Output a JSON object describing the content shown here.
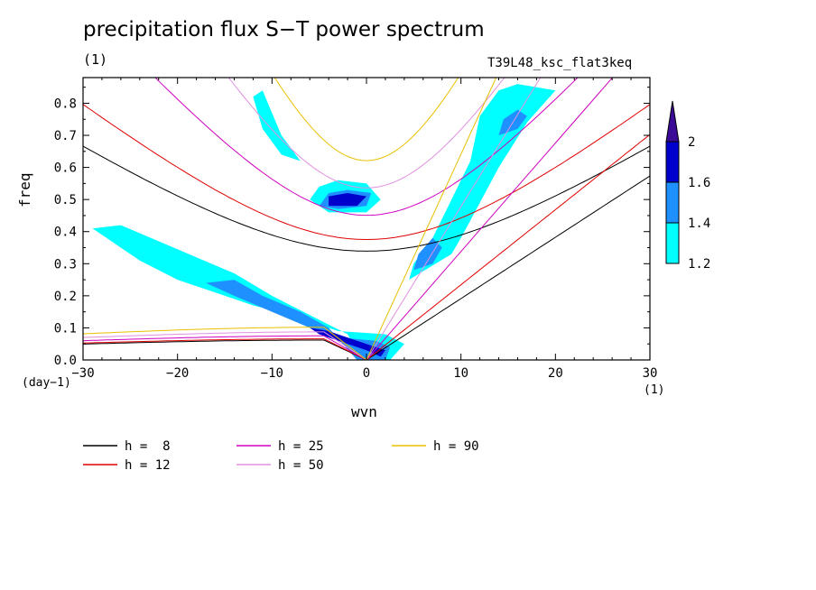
{
  "chart_data": {
    "type": "contour",
    "title": "precipitation flux S−T power spectrum",
    "units": "(1)",
    "run_label": "T39L48_ksc_flat3keq",
    "xlabel": "wvn",
    "xlabel_unit": "(1)",
    "ylabel": "freq",
    "ylabel_unit": "(day−1)",
    "xlim": [
      -30,
      30
    ],
    "ylim": [
      0,
      0.88
    ],
    "x_ticks": [
      -30,
      -20,
      -10,
      0,
      10,
      20,
      30
    ],
    "x_tick_labels": [
      "−30",
      "−20",
      "−10",
      "0",
      "10",
      "20",
      "30"
    ],
    "y_ticks": [
      0,
      0.1,
      0.2,
      0.3,
      0.4,
      0.5,
      0.6,
      0.7,
      0.8
    ],
    "y_tick_labels": [
      "0.0",
      "0.1",
      "0.2",
      "0.3",
      "0.4",
      "0.5",
      "0.6",
      "0.7",
      "0.8"
    ],
    "colorbar": {
      "levels": [
        "1.2",
        "1.4",
        "1.6",
        "2"
      ],
      "colors": [
        "#00ffff",
        "#1e90ff",
        "#0000cd",
        "#3b0a96"
      ]
    },
    "series": [
      {
        "name": "h =  8",
        "h": 8,
        "color": "#000000"
      },
      {
        "name": "h = 12",
        "h": 12,
        "color": "#e00000"
      },
      {
        "name": "h = 25",
        "h": 25,
        "color": "#d000c0"
      },
      {
        "name": "h = 50",
        "h": 50,
        "color": "#e090e0"
      },
      {
        "name": "h = 90",
        "h": 90,
        "color": "#e8c000"
      }
    ],
    "contour_regions": [
      {
        "level": 1.2,
        "points": [
          [
            -0.5,
            0.0
          ],
          [
            2.5,
            0.0
          ],
          [
            4,
            0.05
          ],
          [
            2,
            0.08
          ],
          [
            -3,
            0.09
          ],
          [
            -8,
            0.14
          ],
          [
            -12,
            0.17
          ],
          [
            -16,
            0.21
          ],
          [
            -20,
            0.25
          ],
          [
            -24,
            0.31
          ],
          [
            -27,
            0.37
          ],
          [
            -29,
            0.41
          ],
          [
            -26,
            0.42
          ],
          [
            -22,
            0.37
          ],
          [
            -18,
            0.32
          ],
          [
            -14,
            0.27
          ],
          [
            -10,
            0.2
          ],
          [
            -6,
            0.14
          ],
          [
            -2,
            0.08
          ]
        ]
      },
      {
        "level": 1.2,
        "points": [
          [
            4.5,
            0.25
          ],
          [
            9,
            0.33
          ],
          [
            10,
            0.38
          ],
          [
            12,
            0.49
          ],
          [
            14,
            0.6
          ],
          [
            17,
            0.74
          ],
          [
            20,
            0.84
          ],
          [
            16,
            0.86
          ],
          [
            14,
            0.84
          ],
          [
            12,
            0.76
          ],
          [
            11,
            0.62
          ],
          [
            9,
            0.5
          ],
          [
            7,
            0.38
          ],
          [
            5,
            0.3
          ]
        ]
      },
      {
        "level": 1.2,
        "points": [
          [
            -11,
            0.84
          ],
          [
            -10,
            0.77
          ],
          [
            -9,
            0.7
          ],
          [
            -8,
            0.66
          ],
          [
            -7,
            0.62
          ],
          [
            -9,
            0.64
          ],
          [
            -11,
            0.72
          ],
          [
            -12,
            0.82
          ]
        ]
      },
      {
        "level": 1.2,
        "points": [
          [
            -6,
            0.5
          ],
          [
            -4,
            0.46
          ],
          [
            0,
            0.46
          ],
          [
            1.5,
            0.5
          ],
          [
            0,
            0.55
          ],
          [
            -3,
            0.56
          ],
          [
            -5,
            0.54
          ]
        ]
      },
      {
        "level": 1.4,
        "points": [
          [
            -1,
            0.0
          ],
          [
            2,
            0.0
          ],
          [
            2.5,
            0.04
          ],
          [
            1,
            0.06
          ],
          [
            -3,
            0.07
          ],
          [
            -6,
            0.1
          ],
          [
            -10,
            0.15
          ],
          [
            -14,
            0.2
          ],
          [
            -17,
            0.24
          ],
          [
            -14,
            0.25
          ],
          [
            -11,
            0.2
          ],
          [
            -7,
            0.15
          ],
          [
            -4,
            0.1
          ]
        ]
      },
      {
        "level": 1.4,
        "points": [
          [
            -5,
            0.48
          ],
          [
            -3,
            0.47
          ],
          [
            0,
            0.48
          ],
          [
            0.5,
            0.52
          ],
          [
            -2,
            0.53
          ],
          [
            -4,
            0.52
          ]
        ]
      },
      {
        "level": 1.4,
        "points": [
          [
            5,
            0.28
          ],
          [
            7,
            0.3
          ],
          [
            8,
            0.35
          ],
          [
            7,
            0.38
          ],
          [
            5.5,
            0.33
          ]
        ]
      },
      {
        "level": 1.4,
        "points": [
          [
            14,
            0.7
          ],
          [
            16,
            0.72
          ],
          [
            17,
            0.76
          ],
          [
            16,
            0.78
          ],
          [
            14.5,
            0.75
          ]
        ]
      },
      {
        "level": 1.6,
        "points": [
          [
            -4,
            0.48
          ],
          [
            -1,
            0.48
          ],
          [
            0,
            0.51
          ],
          [
            -2,
            0.52
          ],
          [
            -4,
            0.51
          ]
        ]
      },
      {
        "level": 1.6,
        "points": [
          [
            -3,
            0.06
          ],
          [
            0,
            0.03
          ],
          [
            1.5,
            0.01
          ],
          [
            2,
            0.03
          ],
          [
            -1,
            0.06
          ],
          [
            -4,
            0.09
          ],
          [
            -6,
            0.1
          ],
          [
            -5,
            0.08
          ]
        ]
      }
    ]
  },
  "legend": {
    "items": [
      {
        "label": "h =  8",
        "color": "#000000"
      },
      {
        "label": "h = 12",
        "color": "#e00000"
      },
      {
        "label": "h = 25",
        "color": "#d000c0"
      },
      {
        "label": "h = 50",
        "color": "#e090e0"
      },
      {
        "label": "h = 90",
        "color": "#e8c000"
      }
    ]
  }
}
